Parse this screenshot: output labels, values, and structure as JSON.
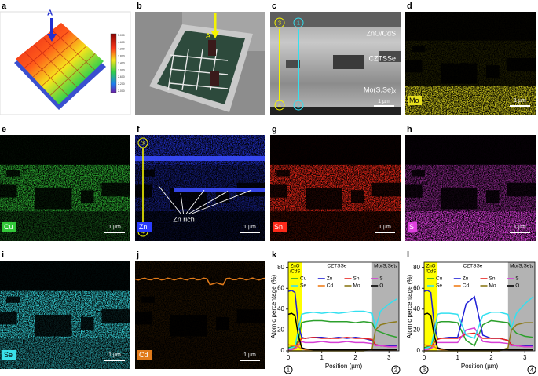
{
  "panels": [
    {
      "label": "a",
      "marker": "A",
      "colorbar": [
        "5.000",
        "4.600",
        "4.200",
        "3.800",
        "3.400",
        "3.000",
        "2.600",
        "2.200",
        "2.000"
      ]
    },
    {
      "label": "b",
      "marker": "A"
    },
    {
      "label": "c",
      "layers": [
        "ZnO/CdS",
        "CZTSSe",
        "Mo(S,Se)ₓ"
      ],
      "scale": "1 µm",
      "markers": [
        "3",
        "1",
        "4",
        "2"
      ]
    },
    {
      "label": "d",
      "element": "Mo",
      "scale": "1 µm"
    },
    {
      "label": "e",
      "element": "Cu",
      "scale": "1 µm"
    },
    {
      "label": "f",
      "element": "Zn",
      "scale": "1 µm",
      "annotation": "Zn rich",
      "markers": [
        "3",
        "4"
      ]
    },
    {
      "label": "g",
      "element": "Sn",
      "scale": "1 µm"
    },
    {
      "label": "h",
      "element": "S",
      "scale": "1 µm"
    },
    {
      "label": "i",
      "element": "Se",
      "scale": "1 µm"
    },
    {
      "label": "j",
      "element": "Cd",
      "scale": "1 µm"
    }
  ],
  "chart_data": [
    {
      "type": "line",
      "panel": "k",
      "x_label": "Position (µm)",
      "y_label": "Atomic percentage (%)",
      "start_marker": "1",
      "end_marker": "2",
      "xlim": [
        0,
        3.3
      ],
      "ylim": [
        0,
        85
      ],
      "xticks": [
        0,
        1,
        2,
        3
      ],
      "yticks": [
        0,
        20,
        40,
        60,
        80
      ],
      "regions": [
        {
          "label_lines": [
            "ZnO",
            "/CdS"
          ],
          "x0": 0,
          "x1": 0.4,
          "color": "#ffff00"
        },
        {
          "label_lines": [
            "CZTSSe"
          ],
          "x0": 0.4,
          "x1": 2.5
        },
        {
          "label_lines": [
            "Mo(S,Se)ₓ"
          ],
          "x0": 2.5,
          "x1": 3.3,
          "color": "#b3b3b3"
        }
      ],
      "x": [
        0,
        0.1,
        0.2,
        0.3,
        0.4,
        0.5,
        0.75,
        1,
        1.25,
        1.5,
        1.75,
        2,
        2.25,
        2.5,
        2.6,
        2.75,
        3,
        3.25
      ],
      "series": [
        {
          "name": "Cu",
          "color": "#2ca02c",
          "values": [
            3,
            4,
            5,
            10,
            27,
            28,
            29,
            29,
            28,
            28,
            28,
            27,
            28,
            27,
            20,
            18,
            15,
            13
          ]
        },
        {
          "name": "Zn",
          "color": "#1f1fd6",
          "values": [
            57,
            58,
            56,
            25,
            13,
            12,
            13,
            13,
            12,
            13,
            12,
            13,
            12,
            10,
            6,
            5,
            5,
            5
          ]
        },
        {
          "name": "Sn",
          "color": "#e8231e",
          "values": [
            2,
            3,
            3,
            8,
            12,
            12,
            13,
            12,
            12,
            12,
            13,
            12,
            12,
            11,
            6,
            5,
            4,
            4
          ]
        },
        {
          "name": "S",
          "color": "#d63fd6",
          "values": [
            1,
            1,
            2,
            5,
            9,
            8,
            8,
            9,
            8,
            8,
            9,
            8,
            8,
            7,
            5,
            5,
            4,
            4
          ]
        },
        {
          "name": "Se",
          "color": "#33e0f0",
          "values": [
            2,
            3,
            4,
            20,
            35,
            36,
            37,
            36,
            37,
            36,
            37,
            38,
            38,
            36,
            22,
            38,
            45,
            50
          ]
        },
        {
          "name": "Cd",
          "color": "#f07f1a",
          "values": [
            6,
            5,
            5,
            4,
            2,
            1,
            1,
            1,
            1,
            1,
            1,
            1,
            1,
            1,
            1,
            1,
            1,
            1
          ]
        },
        {
          "name": "Mo",
          "color": "#8c7a1a",
          "values": [
            0,
            0,
            0,
            0,
            0,
            0,
            0,
            0,
            0,
            0,
            0,
            0,
            0,
            2,
            20,
            25,
            27,
            28
          ]
        },
        {
          "name": "O",
          "color": "#000000",
          "values": [
            35,
            36,
            34,
            15,
            3,
            2,
            1,
            1,
            1,
            1,
            1,
            1,
            1,
            1,
            1,
            1,
            1,
            1
          ]
        }
      ]
    },
    {
      "type": "line",
      "panel": "l",
      "x_label": "Position (µm)",
      "y_label": "Atomic percentage (%)",
      "start_marker": "3",
      "end_marker": "4",
      "xlim": [
        0,
        3.3
      ],
      "ylim": [
        0,
        85
      ],
      "xticks": [
        0,
        1,
        2,
        3
      ],
      "yticks": [
        0,
        20,
        40,
        60,
        80
      ],
      "regions": [
        {
          "label_lines": [
            "ZnO",
            "/CdS"
          ],
          "x0": 0,
          "x1": 0.4,
          "color": "#ffff00"
        },
        {
          "label_lines": [
            "CZTSSe"
          ],
          "x0": 0.4,
          "x1": 2.5
        },
        {
          "label_lines": [
            "Mo(S,Se)ₓ"
          ],
          "x0": 2.5,
          "x1": 3.3,
          "color": "#b3b3b3"
        }
      ],
      "x": [
        0,
        0.1,
        0.2,
        0.3,
        0.4,
        0.5,
        0.75,
        1,
        1.25,
        1.5,
        1.75,
        2,
        2.25,
        2.5,
        2.6,
        2.75,
        3,
        3.25
      ],
      "series": [
        {
          "name": "Cu",
          "color": "#2ca02c",
          "values": [
            3,
            4,
            5,
            12,
            27,
            28,
            28,
            27,
            10,
            5,
            25,
            29,
            28,
            27,
            22,
            17,
            14,
            13
          ]
        },
        {
          "name": "Zn",
          "color": "#1f1fd6",
          "values": [
            57,
            58,
            56,
            25,
            12,
            12,
            13,
            13,
            45,
            52,
            15,
            12,
            12,
            10,
            6,
            5,
            5,
            5
          ]
        },
        {
          "name": "Sn",
          "color": "#e8231e",
          "values": [
            2,
            3,
            3,
            8,
            11,
            12,
            12,
            12,
            16,
            17,
            12,
            12,
            12,
            10,
            6,
            5,
            4,
            4
          ]
        },
        {
          "name": "S",
          "color": "#d63fd6",
          "values": [
            1,
            1,
            2,
            5,
            8,
            8,
            8,
            8,
            20,
            22,
            9,
            8,
            8,
            7,
            5,
            5,
            4,
            4
          ]
        },
        {
          "name": "Se",
          "color": "#33e0f0",
          "values": [
            2,
            3,
            4,
            18,
            35,
            36,
            36,
            35,
            15,
            12,
            34,
            37,
            37,
            35,
            22,
            36,
            45,
            52
          ]
        },
        {
          "name": "Cd",
          "color": "#f07f1a",
          "values": [
            6,
            5,
            5,
            4,
            2,
            1,
            1,
            1,
            1,
            1,
            1,
            1,
            1,
            1,
            1,
            1,
            1,
            1
          ]
        },
        {
          "name": "Mo",
          "color": "#8c7a1a",
          "values": [
            0,
            0,
            0,
            0,
            0,
            0,
            0,
            0,
            0,
            0,
            0,
            0,
            0,
            3,
            20,
            25,
            27,
            27
          ]
        },
        {
          "name": "O",
          "color": "#000000",
          "values": [
            35,
            36,
            34,
            15,
            3,
            2,
            1,
            1,
            1,
            1,
            1,
            1,
            1,
            1,
            1,
            1,
            1,
            1
          ]
        }
      ]
    }
  ]
}
